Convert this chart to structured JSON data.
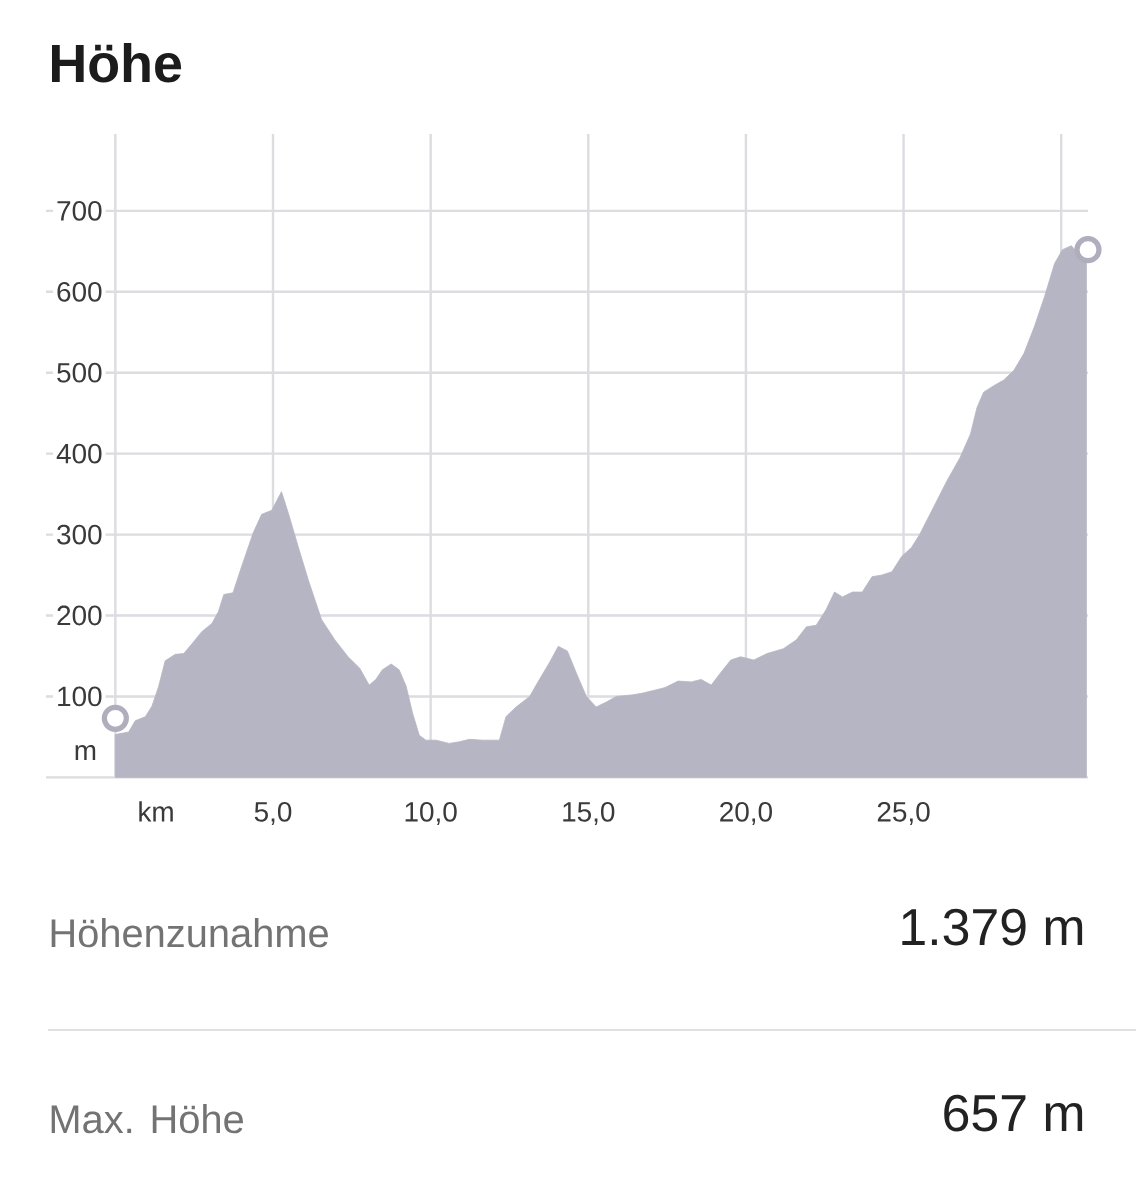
{
  "chart_data": {
    "type": "area",
    "title": "Höhe",
    "xlabel": "km",
    "ylabel": "m",
    "x": [
      0,
      0.42,
      0.63,
      0.95,
      1.16,
      1.37,
      1.58,
      1.9,
      2.17,
      2.43,
      2.74,
      3.06,
      3.27,
      3.44,
      3.73,
      4.0,
      4.37,
      4.64,
      4.96,
      5.27,
      5.49,
      5.8,
      6.12,
      6.54,
      6.96,
      7.38,
      7.75,
      8.05,
      8.26,
      8.47,
      8.75,
      9.0,
      9.22,
      9.43,
      9.64,
      9.85,
      10.17,
      10.59,
      10.91,
      11.23,
      11.65,
      12.18,
      12.39,
      12.71,
      13.14,
      13.45,
      13.77,
      14.05,
      14.34,
      14.62,
      14.94,
      15.25,
      15.57,
      15.89,
      16.42,
      16.71,
      17.13,
      17.44,
      17.85,
      18.27,
      18.58,
      18.9,
      19.21,
      19.52,
      19.83,
      20.25,
      20.67,
      21.19,
      21.6,
      21.92,
      22.23,
      22.54,
      22.81,
      23.06,
      23.38,
      23.69,
      24.0,
      24.31,
      24.63,
      24.94,
      25.25,
      25.51,
      25.94,
      26.37,
      26.79,
      27.12,
      27.33,
      27.54,
      27.86,
      28.18,
      28.5,
      28.82,
      29.15,
      29.47,
      29.79,
      30.04,
      30.32,
      30.53,
      30.8
    ],
    "series": [
      {
        "color": "#b6b5c3",
        "values": [
          53,
          56,
          70,
          75,
          88,
          112,
          144,
          152,
          153,
          165,
          180,
          190,
          205,
          226,
          228,
          260,
          302,
          325,
          330,
          353,
          326,
          285,
          244,
          195,
          170,
          149,
          135,
          114,
          121,
          133,
          140,
          133,
          113,
          79,
          52,
          46,
          46,
          42,
          44,
          47,
          46,
          46,
          75,
          87,
          100,
          121,
          142,
          162,
          156,
          129,
          100,
          87,
          93,
          100,
          102,
          104,
          108,
          111,
          119,
          118,
          121,
          114,
          130,
          145,
          149,
          145,
          153,
          159,
          170,
          186,
          188,
          207,
          229,
          223,
          229,
          229,
          248,
          250,
          254,
          273,
          284,
          300,
          333,
          366,
          395,
          424,
          457,
          476,
          484,
          491,
          503,
          524,
          557,
          594,
          635,
          652,
          657,
          648,
          645
        ]
      },
      {
        "type": "scatter",
        "marker": "circle",
        "color": "#b0aebd",
        "x": [
          0,
          30.85
        ],
        "values": [
          73,
          652
        ]
      }
    ],
    "xlim": [
      -2.2,
      30.85
    ],
    "ylim": [
      0,
      795
    ],
    "xticks": [
      {
        "value": 0,
        "label": null
      },
      {
        "value": 5,
        "label": "5,0"
      },
      {
        "value": 10,
        "label": "10,0"
      },
      {
        "value": 15,
        "label": "15,0"
      },
      {
        "value": 20,
        "label": "20,0"
      },
      {
        "value": 25,
        "label": "25,0"
      },
      {
        "value": 30,
        "label": null
      }
    ],
    "yticks": [
      100,
      200,
      300,
      400,
      500,
      600,
      700
    ],
    "grid": true,
    "annotations": [
      "Höhenzunahme",
      "1.379 m",
      "Max. Höhe",
      "657 m"
    ]
  }
}
